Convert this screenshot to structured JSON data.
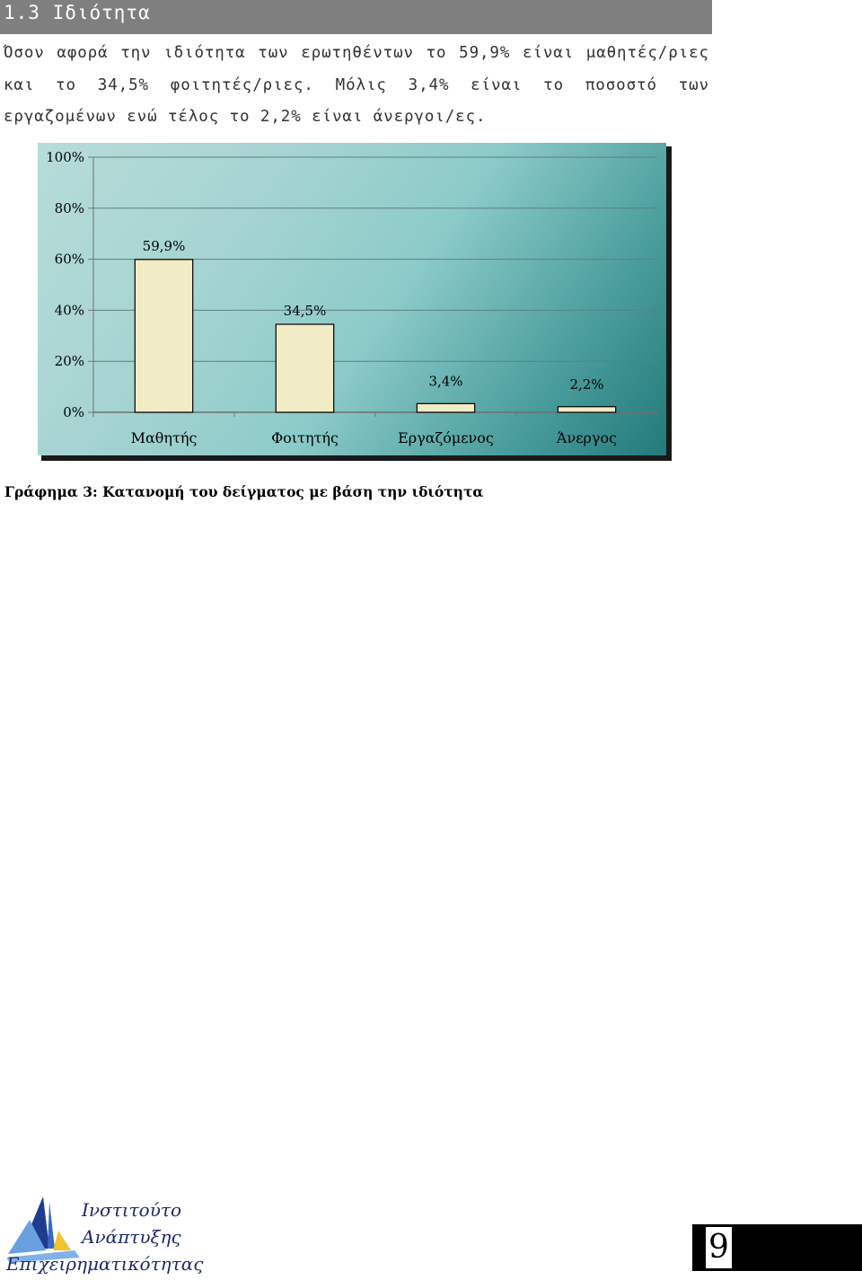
{
  "heading": "1.3 Ιδιότητα",
  "paragraph": "Όσον αφορά την ιδιότητα των ερωτηθέντων το 59,9% είναι μαθητές/ριες και το 34,5% φοιτητές/ριες. Μόλις 3,4% είναι το ποσοστό των εργαζομένων ενώ τέλος το 2,2% είναι άνεργοι/ες.",
  "chart_data": {
    "type": "bar",
    "categories": [
      "Μαθητής",
      "Φοιτητής",
      "Εργαζόμενος",
      "Άνεργος"
    ],
    "values": [
      59.9,
      34.5,
      3.4,
      2.2
    ],
    "data_labels": [
      "59,9%",
      "34,5%",
      "3,4%",
      "2,2%"
    ],
    "y_ticks": [
      0,
      20,
      40,
      60,
      80,
      100
    ],
    "y_tick_labels": [
      "0%",
      "20%",
      "40%",
      "60%",
      "80%",
      "100%"
    ],
    "ylim": [
      0,
      100
    ],
    "grid": true,
    "legend": "none",
    "bar_color": "#f2ecc6",
    "background_color": "#8ccbc9"
  },
  "caption": "Γράφημα 3: Κατανομή του δείγματος με βάση την ιδιότητα",
  "logo": {
    "lines": [
      "Ινστιτούτο",
      "Ανάπτυξης",
      "Επιχειρηματικότητας"
    ]
  },
  "page_number": "9"
}
